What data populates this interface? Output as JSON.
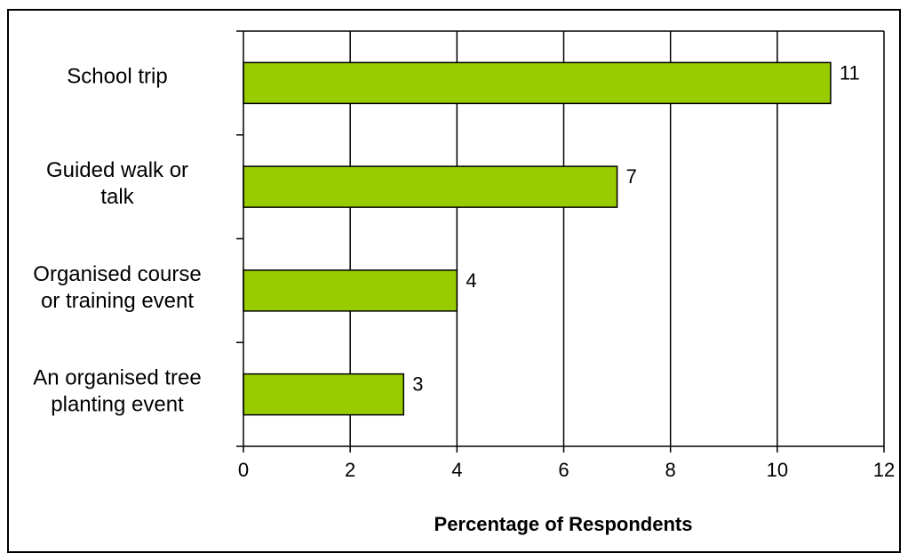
{
  "chart_data": {
    "type": "bar",
    "orientation": "horizontal",
    "categories": [
      "School trip",
      "Guided walk or talk",
      "Organised course or training event",
      "An organised tree planting event"
    ],
    "category_lines": [
      [
        "School trip"
      ],
      [
        "Guided walk or",
        "talk"
      ],
      [
        "Organised course",
        "or training event"
      ],
      [
        "An organised tree",
        "planting event"
      ]
    ],
    "values": [
      11,
      7,
      4,
      3
    ],
    "data_labels": [
      "11",
      "7",
      "4",
      "3"
    ],
    "xlabel": "Percentage of Respondents",
    "ylabel": "",
    "xlim": [
      0,
      12
    ],
    "xticks": [
      0,
      2,
      4,
      6,
      8,
      10,
      12
    ],
    "grid": "vertical",
    "legend": "none",
    "colors": {
      "bar_fill": "#99cc00",
      "bar_stroke": "#000000",
      "grid": "#000000"
    }
  }
}
